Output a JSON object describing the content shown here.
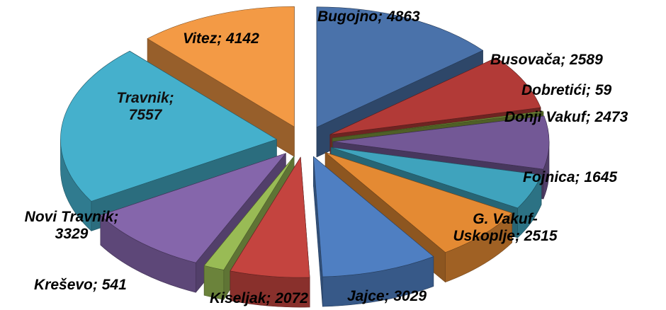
{
  "chart_data": {
    "type": "pie",
    "style": "exploded 3D pie",
    "slices": [
      {
        "category": "Bugojno",
        "value": 4863,
        "label": "Bugojno; 4863",
        "color": "#4a72aa"
      },
      {
        "category": "Busovača",
        "value": 2589,
        "label": "Busovača; 2589",
        "color": "#b23a37"
      },
      {
        "category": "Dobretići",
        "value": 59,
        "label": "Dobretići; 59",
        "color": "#7f9a3e"
      },
      {
        "category": "Donji Vakuf",
        "value": 2473,
        "label": "Donji Vakuf; 2473",
        "color": "#735896"
      },
      {
        "category": "Fojnica",
        "value": 1645,
        "label": "Fojnica; 1645",
        "color": "#3fa3bd"
      },
      {
        "category": "G. Vakuf-Uskoplje",
        "value": 2515,
        "label_line1": "G. Vakuf-",
        "label_line2": "Uskoplje; 2515",
        "color": "#e48a33"
      },
      {
        "category": "Jajce",
        "value": 3029,
        "label": "Jajce; 3029",
        "color": "#4f7fc2"
      },
      {
        "category": "Kiseljak",
        "value": 2072,
        "label": "Kiseljak; 2072",
        "color": "#c4443f"
      },
      {
        "category": "Kreševo",
        "value": 541,
        "label": "Kreševo; 541",
        "color": "#99bb55"
      },
      {
        "category": "Novi Travnik",
        "value": 3329,
        "label_line1": "Novi Travnik;",
        "label_line2": "3329",
        "color": "#8566ab"
      },
      {
        "category": "Travnik",
        "value": 7557,
        "label_line1": "Travnik;",
        "label_line2": "7557",
        "color": "#45b0cc"
      },
      {
        "category": "Vitez",
        "value": 4142,
        "label": "Vitez; 4142",
        "color": "#f39a45"
      }
    ],
    "legend": "none",
    "data_labels": "category; value"
  }
}
